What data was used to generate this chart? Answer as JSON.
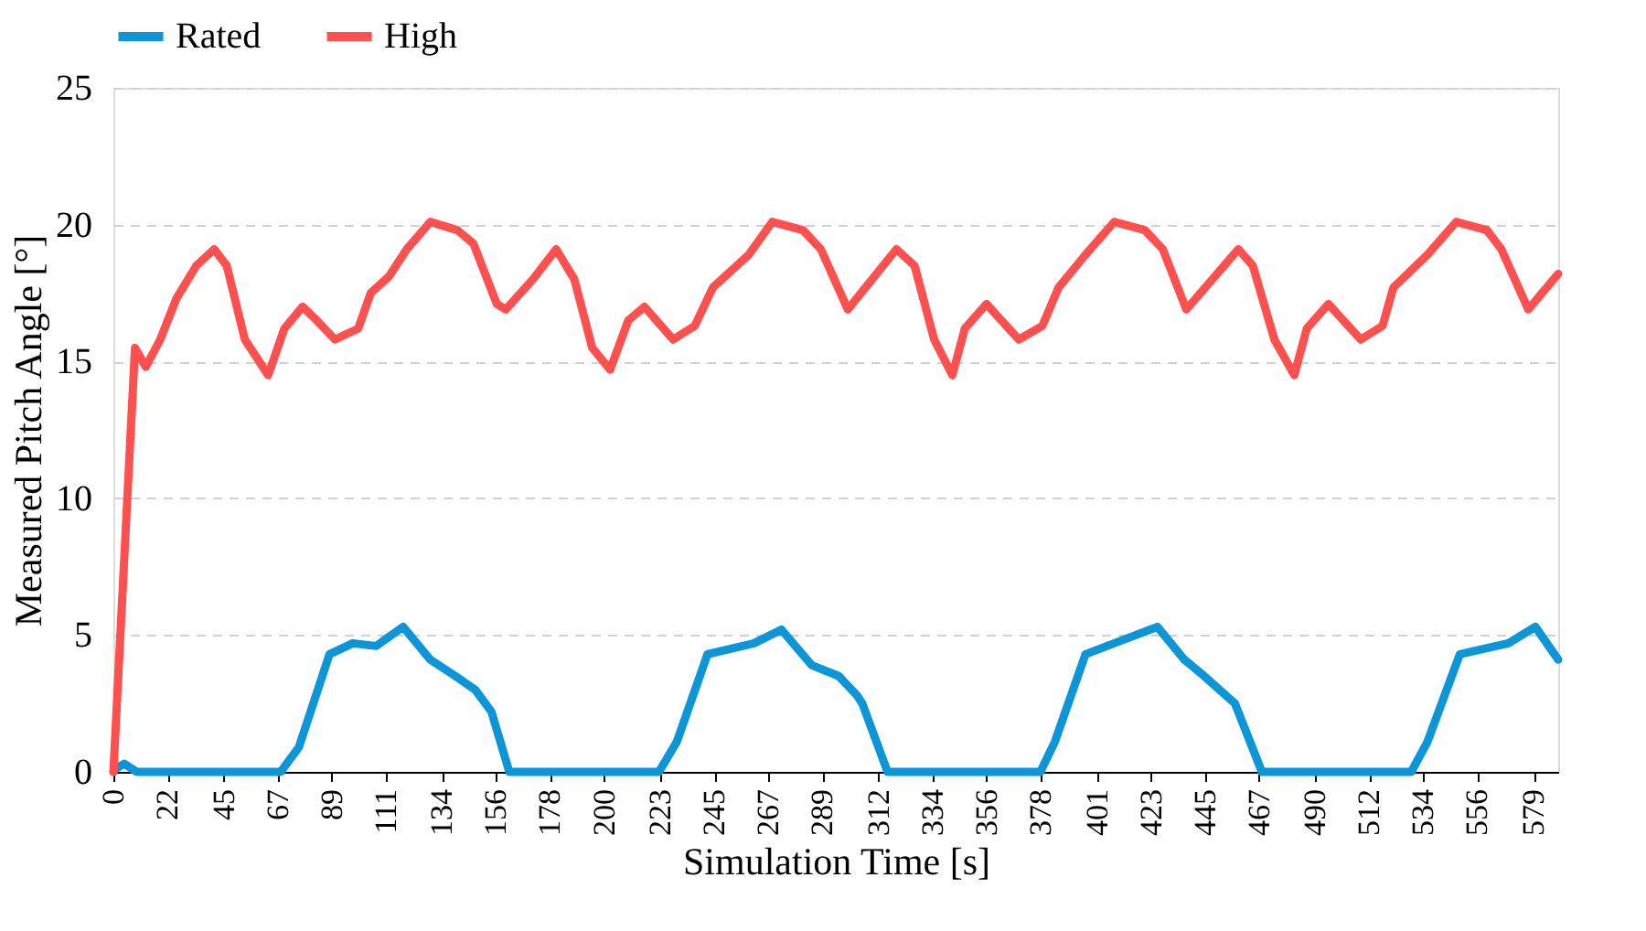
{
  "chart_data": {
    "type": "line",
    "xlabel": "Simulation Time [s]",
    "ylabel": "Measured Pitch Angle [°]",
    "xlim": [
      0,
      589
    ],
    "ylim": [
      0,
      25
    ],
    "yticks": [
      0,
      5,
      10,
      15,
      20,
      25
    ],
    "xticks": [
      0,
      22,
      45,
      67,
      89,
      111,
      134,
      156,
      178,
      200,
      223,
      245,
      267,
      289,
      312,
      334,
      356,
      378,
      401,
      423,
      445,
      467,
      490,
      512,
      534,
      556,
      579
    ],
    "grid": "y",
    "legend": "top",
    "line_style": "solid",
    "marker": "none",
    "series": [
      {
        "name": "Rated",
        "color": "#0c96d8",
        "x": [
          0,
          0.7,
          4.4,
          9.5,
          68.2,
          75.6,
          81.5,
          88.1,
          97.6,
          107.1,
          118.1,
          129.2,
          139.4,
          147.5,
          154.1,
          161.4,
          222.4,
          229.7,
          242.2,
          261.2,
          272.3,
          284.7,
          295.7,
          303.1,
          305.3,
          315.6,
          377.9,
          383.8,
          396.3,
          410.9,
          425.6,
          436.6,
          444.7,
          457.2,
          468.2,
          529.1,
          535.7,
          548.9,
          568.7,
          579.7,
          589
        ],
        "values": [
          0,
          0.1,
          0.3,
          0,
          0,
          0.9,
          2.5,
          4.3,
          4.7,
          4.6,
          5.3,
          4.1,
          3.5,
          3.0,
          2.2,
          0,
          0,
          1.1,
          4.3,
          4.7,
          5.2,
          3.9,
          3.5,
          2.8,
          2.5,
          0,
          0,
          1.1,
          4.3,
          4.8,
          5.3,
          4.1,
          3.5,
          2.5,
          0,
          0,
          1.1,
          4.3,
          4.7,
          5.3,
          4.1
        ]
      },
      {
        "name": "High",
        "color": "#ff5050",
        "x": [
          0,
          8.8,
          13.2,
          19.1,
          25.7,
          33.8,
          41.1,
          46.2,
          53.6,
          63.1,
          69.7,
          77.1,
          82.9,
          90.3,
          99.8,
          104.9,
          112.3,
          119.6,
          129.2,
          140.2,
          146.8,
          156.3,
          160.0,
          171.0,
          180.5,
          187.9,
          195.2,
          202.5,
          209.9,
          216.5,
          228.2,
          237.0,
          244.4,
          259.0,
          268.6,
          281.1,
          288.4,
          299.4,
          319.2,
          326.6,
          334.6,
          342.0,
          347.1,
          355.9,
          369.1,
          378.7,
          385.3,
          396.3,
          408.0,
          420.5,
          427.8,
          437.4,
          458.6,
          464.5,
          473.3,
          481.4,
          486.5,
          495.3,
          508.5,
          517.4,
          521.8,
          535.7,
          547.4,
          559.9,
          565.8,
          576.8,
          589
        ],
        "values": [
          0,
          15.5,
          14.8,
          15.8,
          17.3,
          18.5,
          19.1,
          18.5,
          15.8,
          14.5,
          16.2,
          17.0,
          16.5,
          15.8,
          16.2,
          17.5,
          18.1,
          19.1,
          20.1,
          19.8,
          19.3,
          17.1,
          16.9,
          18.0,
          19.1,
          18.0,
          15.5,
          14.7,
          16.5,
          17.0,
          15.8,
          16.3,
          17.7,
          18.9,
          20.1,
          19.8,
          19.1,
          16.9,
          19.1,
          18.5,
          15.8,
          14.5,
          16.2,
          17.1,
          15.8,
          16.3,
          17.7,
          18.9,
          20.1,
          19.8,
          19.1,
          16.9,
          19.1,
          18.5,
          15.8,
          14.5,
          16.2,
          17.1,
          15.8,
          16.3,
          17.7,
          18.9,
          20.1,
          19.8,
          19.1,
          16.9,
          18.2
        ]
      }
    ]
  }
}
